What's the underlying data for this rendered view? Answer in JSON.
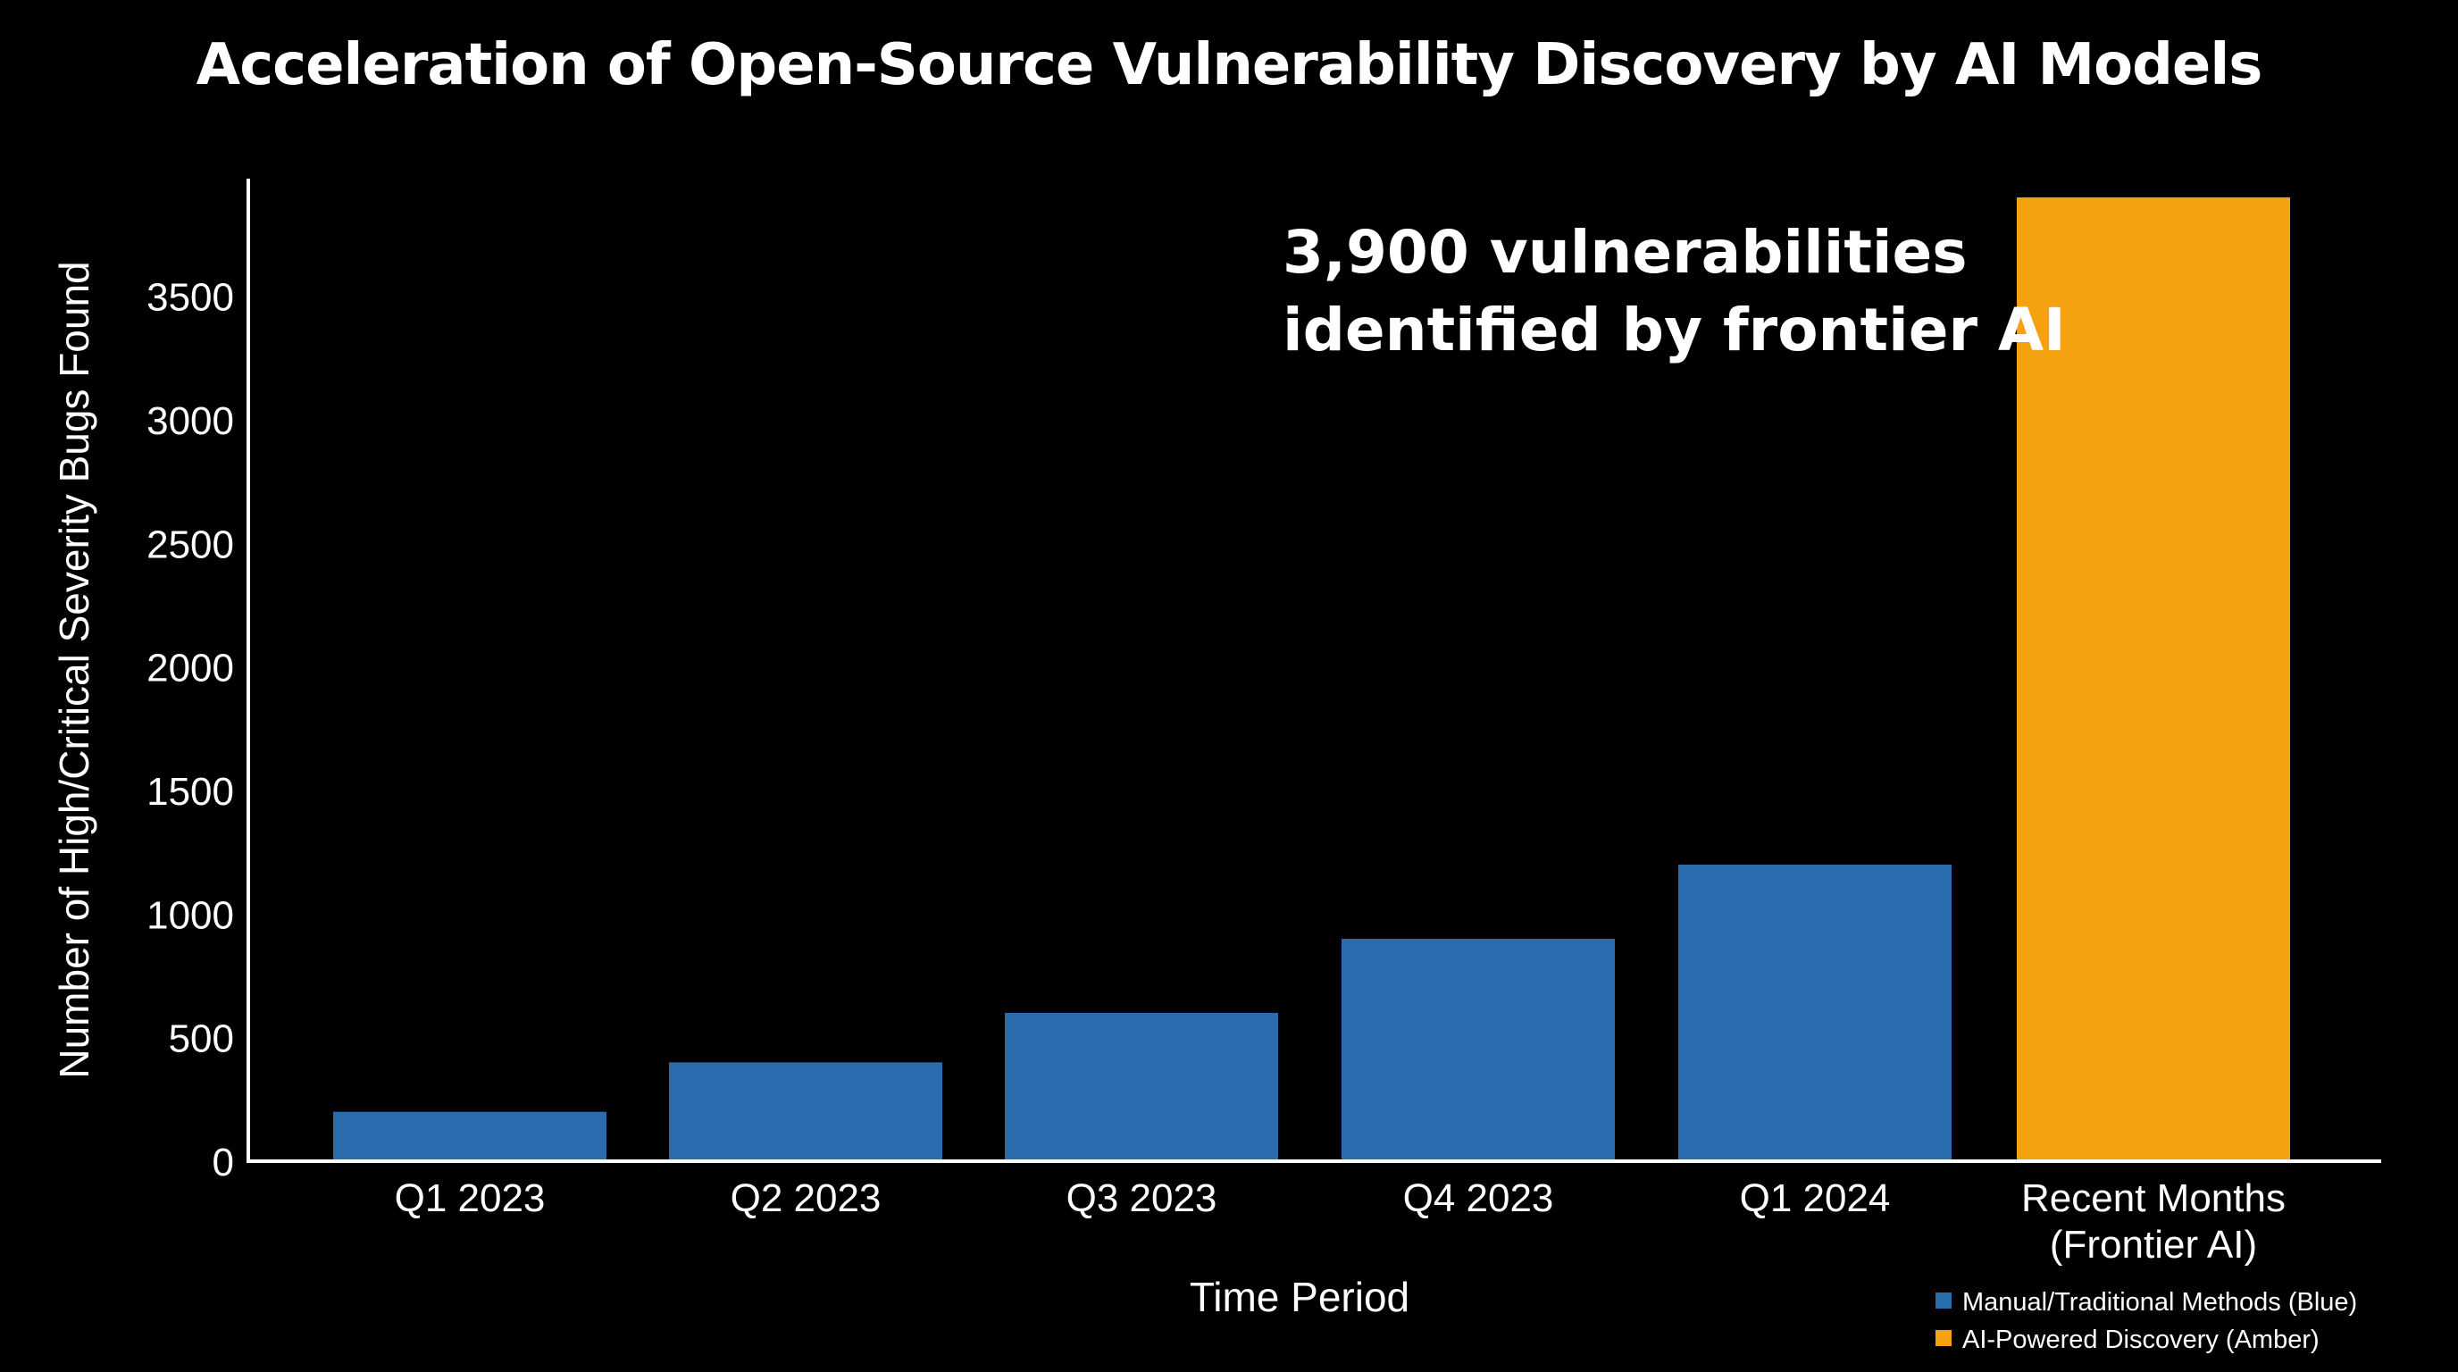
{
  "chart_data": {
    "type": "bar",
    "title": "Acceleration of Open-Source Vulnerability Discovery by AI Models",
    "xlabel": "Time Period",
    "ylabel": "Number of High/Critical Severity Bugs Found",
    "categories": [
      [
        "Q1 2023"
      ],
      [
        "Q2 2023"
      ],
      [
        "Q3 2023"
      ],
      [
        "Q4 2023"
      ],
      [
        "Q1 2024"
      ],
      [
        "Recent Months",
        "(Frontier AI)"
      ]
    ],
    "values": [
      200,
      400,
      600,
      900,
      1200,
      3900
    ],
    "bar_colors": [
      "#2a6cad",
      "#2a6cad",
      "#2a6cad",
      "#2a6cad",
      "#2a6cad",
      "#f4a20f"
    ],
    "ylim": [
      0,
      3950
    ],
    "yticks": [
      0,
      500,
      1000,
      1500,
      2000,
      2500,
      3000,
      3500
    ],
    "grid": false,
    "annotation": {
      "lines": [
        "3,900 vulnerabilities",
        "identified by frontier AI"
      ]
    },
    "legend": {
      "placement": "bottom-right",
      "items": [
        {
          "label": "Manual/Traditional Methods (Blue)",
          "color": "#2a6cad"
        },
        {
          "label": "AI-Powered Discovery (Amber)",
          "color": "#f4a20f"
        }
      ]
    }
  }
}
